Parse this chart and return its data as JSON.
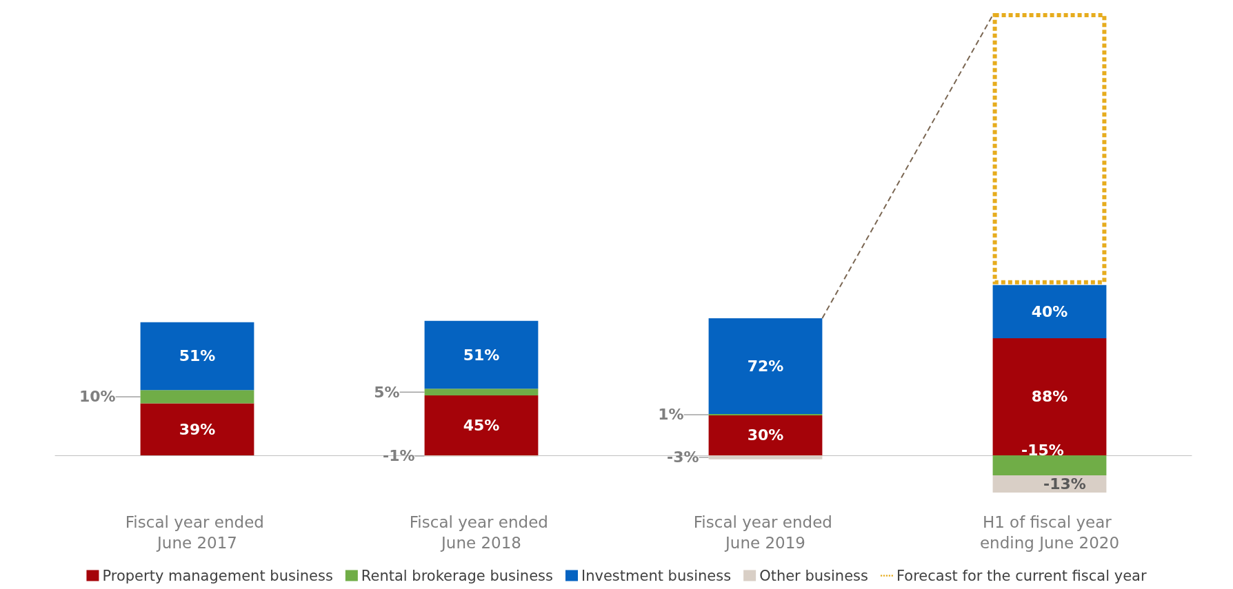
{
  "chart_data": {
    "type": "bar",
    "stacked": true,
    "legend": "bottom",
    "categories": [
      "Fiscal year ended June 2017",
      "Fiscal year ended June 2018",
      "Fiscal year ended June 2019",
      "H1 of fiscal year ending June 2020"
    ],
    "series": [
      {
        "name": "Property management business",
        "color": "#a50309",
        "values": [
          39,
          45,
          30,
          88
        ],
        "value_labels": [
          "39%",
          "45%",
          "30%",
          "88%"
        ]
      },
      {
        "name": "Rental brokerage business",
        "color": "#70ad47",
        "values": [
          10,
          5,
          1,
          -15
        ],
        "value_labels": [
          "10%",
          "5%",
          "1%",
          "-15%"
        ]
      },
      {
        "name": "Investment business",
        "color": "#0563c1",
        "values": [
          51,
          51,
          72,
          40
        ],
        "value_labels": [
          "51%",
          "51%",
          "72%",
          "40%"
        ]
      },
      {
        "name": "Other business",
        "color": "#d9cfc6",
        "values": [
          null,
          -1,
          -3,
          -13
        ],
        "value_labels": [
          null,
          "-1%",
          "-3%",
          "-13%"
        ]
      },
      {
        "name": "Forecast for the current fiscal year",
        "color": "#e6ac1e",
        "line_style": "dotted",
        "values": [
          null,
          null,
          null,
          null
        ]
      }
    ]
  }
}
